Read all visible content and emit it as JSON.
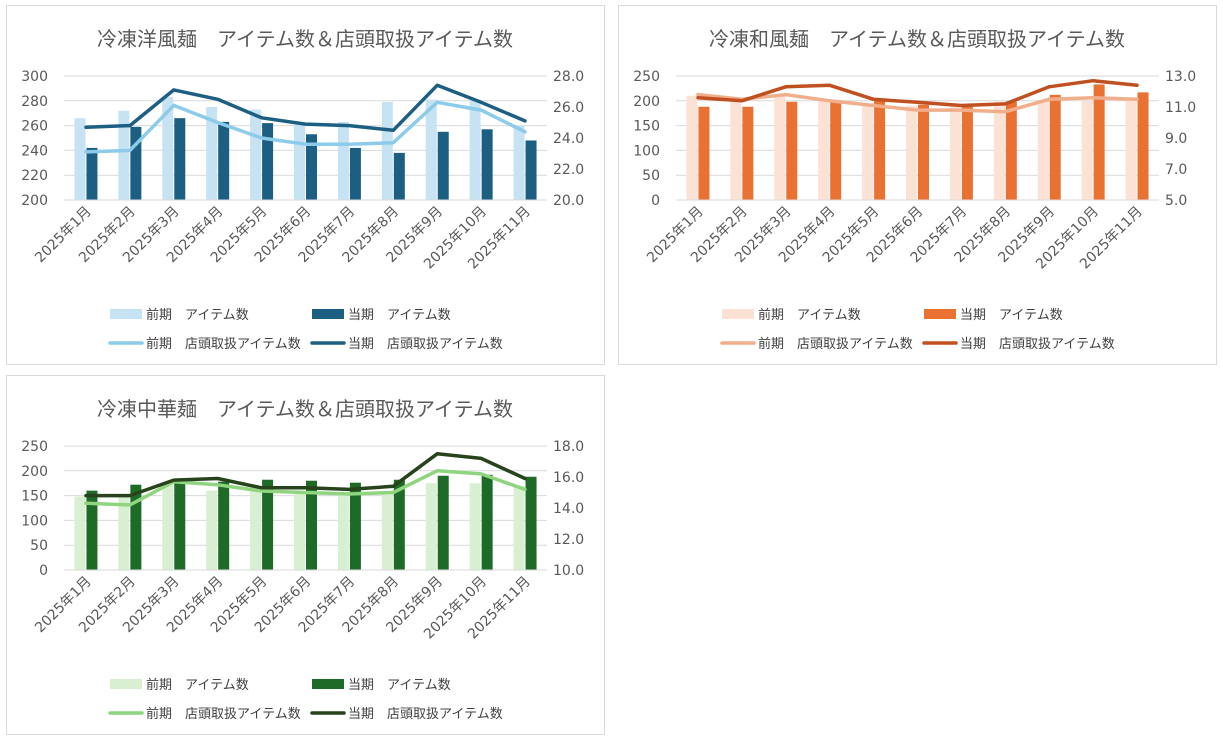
{
  "chart_data": [
    {
      "type": "bar",
      "title": "冷凍洋風麺　アイテム数＆店頭取扱アイテム数",
      "categories": [
        "2025年1月",
        "2025年2月",
        "2025年3月",
        "2025年4月",
        "2025年5月",
        "2025年6月",
        "2025年7月",
        "2025年8月",
        "2025年9月",
        "2025年10月",
        "2025年11月"
      ],
      "y_left": {
        "min": 200,
        "max": 300,
        "ticks": [
          "300",
          "280",
          "260",
          "240",
          "220",
          "200"
        ]
      },
      "y_right": {
        "min": 20,
        "max": 28,
        "ticks": [
          "28.0",
          "26.0",
          "24.0",
          "22.0",
          "20.0"
        ]
      },
      "colors": {
        "bar_prev": "#c5e3f3",
        "bar_curr": "#1c5f82",
        "line_prev": "#8ccbea",
        "line_curr": "#1c5f82"
      },
      "series": [
        {
          "name": "前期　アイテム数",
          "kind": "bar",
          "axis": "left",
          "values": [
            266,
            272,
            283,
            275,
            273,
            261,
            263,
            279,
            281,
            280,
            260
          ]
        },
        {
          "name": "当期　アイテム数",
          "kind": "bar",
          "axis": "left",
          "values": [
            242,
            259,
            266,
            263,
            262,
            253,
            242,
            238,
            255,
            257,
            248
          ]
        },
        {
          "name": "前期　店頭取扱アイテム数",
          "kind": "line",
          "axis": "right",
          "values": [
            23.1,
            23.2,
            26.1,
            25.0,
            24.0,
            23.6,
            23.6,
            23.7,
            26.3,
            25.8,
            24.4
          ]
        },
        {
          "name": "当期　店頭取扱アイテム数",
          "kind": "line",
          "axis": "right",
          "values": [
            24.7,
            24.8,
            27.1,
            26.5,
            25.3,
            24.9,
            24.8,
            24.5,
            27.4,
            26.3,
            25.1
          ]
        }
      ]
    },
    {
      "type": "bar",
      "title": "冷凍和風麺　アイテム数＆店頭取扱アイテム数",
      "categories": [
        "2025年1月",
        "2025年2月",
        "2025年3月",
        "2025年4月",
        "2025年5月",
        "2025年6月",
        "2025年7月",
        "2025年8月",
        "2025年9月",
        "2025年10月",
        "2025年11月"
      ],
      "y_left": {
        "min": 0,
        "max": 250,
        "ticks": [
          "250",
          "200",
          "150",
          "100",
          "50",
          "0"
        ]
      },
      "y_right": {
        "min": 5,
        "max": 13,
        "ticks": [
          "13.0",
          "11.0",
          "9.0",
          "7.0",
          "5.0"
        ]
      },
      "colors": {
        "bar_prev": "#fbe2d5",
        "bar_curr": "#e97132",
        "line_prev": "#f0ae8a",
        "line_curr": "#c0501f"
      },
      "series": [
        {
          "name": "前期　アイテム数",
          "kind": "bar",
          "axis": "left",
          "values": [
            210,
            205,
            212,
            200,
            190,
            190,
            190,
            198,
            200,
            200,
            205
          ]
        },
        {
          "name": "当期　アイテム数",
          "kind": "bar",
          "axis": "left",
          "values": [
            188,
            188,
            198,
            200,
            202,
            192,
            188,
            198,
            212,
            233,
            217
          ]
        },
        {
          "name": "前期　店頭取扱アイテム数",
          "kind": "line",
          "axis": "right",
          "values": [
            11.8,
            11.5,
            11.8,
            11.4,
            11.1,
            10.8,
            10.8,
            10.7,
            11.5,
            11.6,
            11.5
          ]
        },
        {
          "name": "当期　店頭取扱アイテム数",
          "kind": "line",
          "axis": "right",
          "values": [
            11.6,
            11.4,
            12.3,
            12.4,
            11.5,
            11.3,
            11.1,
            11.2,
            12.3,
            12.7,
            12.4
          ]
        }
      ]
    },
    {
      "type": "bar",
      "title": "冷凍中華麺　アイテム数＆店頭取扱アイテム数",
      "categories": [
        "2025年1月",
        "2025年2月",
        "2025年3月",
        "2025年4月",
        "2025年5月",
        "2025年6月",
        "2025年7月",
        "2025年8月",
        "2025年9月",
        "2025年10月",
        "2025年11月"
      ],
      "y_left": {
        "min": 0,
        "max": 250,
        "ticks": [
          "250",
          "200",
          "150",
          "100",
          "50",
          "0"
        ]
      },
      "y_right": {
        "min": 10,
        "max": 18,
        "ticks": [
          "18.0",
          "16.0",
          "14.0",
          "12.0",
          "10.0"
        ]
      },
      "colors": {
        "bar_prev": "#d8f0d1",
        "bar_curr": "#1e6b27",
        "line_prev": "#8fd47f",
        "line_curr": "#27431c"
      },
      "series": [
        {
          "name": "前期　アイテム数",
          "kind": "bar",
          "axis": "left",
          "values": [
            148,
            150,
            170,
            160,
            165,
            155,
            152,
            155,
            175,
            175,
            170
          ]
        },
        {
          "name": "当期　アイテム数",
          "kind": "bar",
          "axis": "left",
          "values": [
            160,
            172,
            178,
            178,
            182,
            180,
            176,
            182,
            190,
            192,
            188
          ]
        },
        {
          "name": "前期　店頭取扱アイテム数",
          "kind": "line",
          "axis": "right",
          "values": [
            14.3,
            14.2,
            15.7,
            15.5,
            15.1,
            15.0,
            14.9,
            15.0,
            16.4,
            16.2,
            15.2
          ]
        },
        {
          "name": "当期　店頭取扱アイテム数",
          "kind": "line",
          "axis": "right",
          "values": [
            14.8,
            14.8,
            15.8,
            15.9,
            15.3,
            15.3,
            15.2,
            15.4,
            17.5,
            17.2,
            15.9
          ]
        }
      ]
    }
  ]
}
